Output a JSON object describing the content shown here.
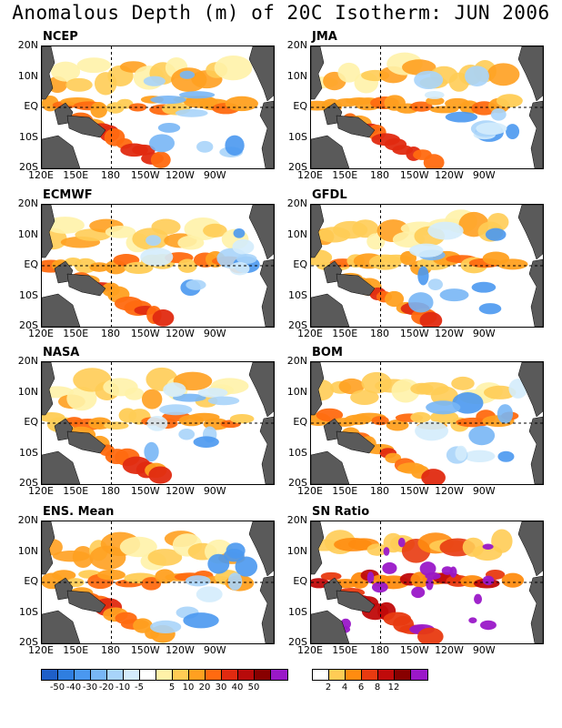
{
  "title": "Anomalous Depth (m) of 20C Isotherm: JUN 2006",
  "axes": {
    "lat_labels": [
      "20N",
      "10N",
      "EQ",
      "10S",
      "20S"
    ],
    "lon_labels": [
      "120E",
      "150E",
      "180",
      "150W",
      "120W",
      "90W"
    ]
  },
  "panels": [
    {
      "name": "NCEP",
      "pattern": "ncep"
    },
    {
      "name": "JMA",
      "pattern": "jma"
    },
    {
      "name": "ECMWF",
      "pattern": "ecmwf"
    },
    {
      "name": "GFDL",
      "pattern": "gfdl"
    },
    {
      "name": "NASA",
      "pattern": "nasa"
    },
    {
      "name": "BOM",
      "pattern": "bom"
    },
    {
      "name": "ENS. Mean",
      "pattern": "ens"
    },
    {
      "name": "SN Ratio",
      "pattern": "sn"
    }
  ],
  "colorbar_anomaly": {
    "colors": [
      "#1f5fc8",
      "#2f7ee0",
      "#4a98f0",
      "#78b6f5",
      "#a8d4fa",
      "#d4ecfc",
      "#ffffff",
      "#fff2a8",
      "#ffcc55",
      "#ffa020",
      "#ff6a10",
      "#e02a10",
      "#b80a0a",
      "#880000",
      "#9a18c8"
    ],
    "labels": [
      "-50",
      "-40",
      "-30",
      "-20",
      "-10",
      "-5",
      "5",
      "10",
      "20",
      "30",
      "40",
      "50"
    ]
  },
  "colorbar_sn": {
    "colors": [
      "#ffffff",
      "#ffcc55",
      "#ff8c10",
      "#e83a10",
      "#c00a0a",
      "#880000",
      "#9a18c8"
    ],
    "labels": [
      "2",
      "4",
      "6",
      "8",
      "12"
    ]
  },
  "land_color": "#5a5a5a"
}
